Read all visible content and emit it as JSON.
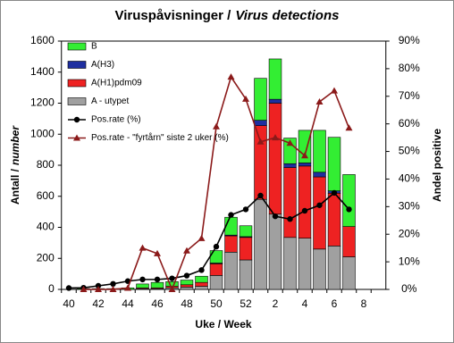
{
  "chart_data": {
    "type": "bar",
    "title": [
      "Viruspåvisninger /",
      "Virus detections"
    ],
    "ylabel": [
      "Antall /",
      "number"
    ],
    "xlabel": "Uke / Week",
    "y2label": "Andel positive",
    "categories": [
      "40",
      null,
      "42",
      null,
      "44",
      null,
      "46",
      null,
      "48",
      null,
      "50",
      null,
      "52",
      null,
      "2",
      null,
      "4",
      null,
      "6",
      null,
      "8",
      null
    ],
    "ylim": [
      0,
      1600
    ],
    "yticks": [
      0,
      200,
      400,
      600,
      800,
      1000,
      1200,
      1400,
      1600
    ],
    "y2lim": [
      0,
      90
    ],
    "y2ticks": [
      {
        "value": 0,
        "label": "0%"
      },
      {
        "value": 10,
        "label": "10%"
      },
      {
        "value": 20,
        "label": "20%"
      },
      {
        "value": 30,
        "label": "30%"
      },
      {
        "value": 40,
        "label": "40%"
      },
      {
        "value": 50,
        "label": "50%"
      },
      {
        "value": 60,
        "label": "60%"
      },
      {
        "value": 70,
        "label": "70%"
      },
      {
        "value": 80,
        "label": "80%"
      },
      {
        "value": 90,
        "label": "90%"
      }
    ],
    "series": [
      {
        "name": "A - utypet",
        "type": "bar",
        "color": "#a0a0a0",
        "values": [
          0,
          0,
          0,
          0,
          0,
          5,
          5,
          10,
          15,
          20,
          90,
          240,
          190,
          580,
          485,
          335,
          330,
          260,
          280,
          210,
          null,
          null
        ]
      },
      {
        "name": "A(H1)pdm09",
        "type": "bar",
        "color": "#ee2222",
        "values": [
          0,
          0,
          0,
          0,
          0,
          5,
          5,
          10,
          15,
          25,
          75,
          105,
          145,
          475,
          715,
          450,
          465,
          465,
          340,
          195,
          null,
          null
        ]
      },
      {
        "name": "A(H3)",
        "type": "bar",
        "color": "#1f2fa0",
        "values": [
          0,
          0,
          0,
          0,
          0,
          0,
          0,
          0,
          0,
          0,
          5,
          5,
          5,
          35,
          25,
          25,
          20,
          30,
          15,
          0,
          null,
          null
        ]
      },
      {
        "name": "B",
        "type": "bar",
        "color": "#33ee33",
        "values": [
          0,
          5,
          5,
          5,
          10,
          25,
          35,
          30,
          30,
          40,
          80,
          115,
          70,
          270,
          260,
          165,
          210,
          270,
          345,
          335,
          null,
          null
        ]
      },
      {
        "name": "Pos.rate (%)",
        "type": "line",
        "marker": "circle",
        "axis": "y2",
        "color": "#000000",
        "values": [
          0.5,
          0.6,
          1.3,
          2,
          3,
          3.6,
          3.6,
          4,
          5,
          7,
          15.5,
          27,
          29,
          34,
          26.5,
          25.5,
          28.5,
          30.5,
          35,
          29,
          null,
          null
        ]
      },
      {
        "name": "Pos.rate - \"fyrtårn\" siste 2 uker (%)",
        "type": "line",
        "marker": "triangle",
        "axis": "y2",
        "color": "#8b1a1a",
        "values": [
          null,
          0,
          0,
          0,
          0.5,
          15,
          13,
          0,
          14,
          18.5,
          59,
          77,
          69,
          53.5,
          55,
          53,
          48.5,
          68,
          72,
          58.5,
          null,
          null
        ]
      }
    ],
    "legend_order": [
      3,
      2,
      1,
      0,
      4,
      5
    ]
  }
}
